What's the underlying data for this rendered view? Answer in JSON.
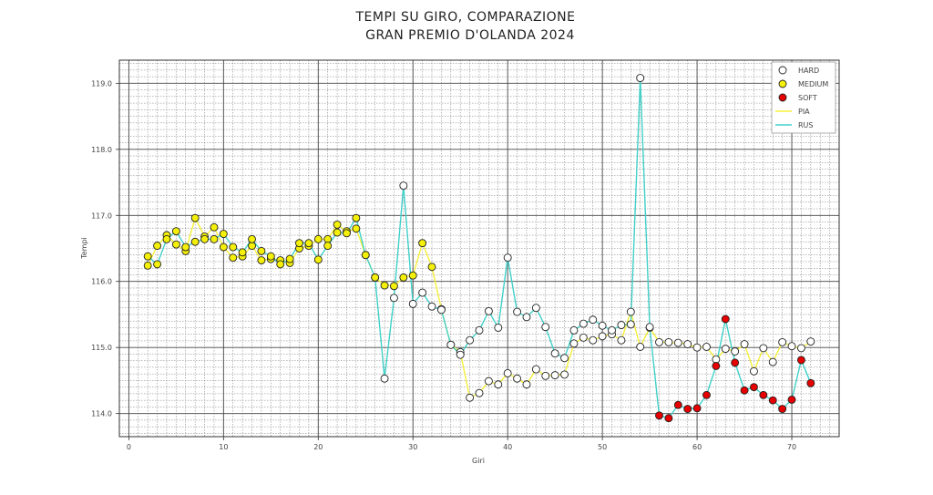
{
  "chart_data": {
    "type": "line",
    "title": [
      "TEMPI SU GIRO, COMPARAZIONE",
      "GRAN PREMIO D'OLANDA 2024"
    ],
    "xlabel": "Giri",
    "ylabel": "Tempi",
    "xlim": [
      -1,
      75
    ],
    "ylim": [
      113.65,
      119.35
    ],
    "xticks": [
      0,
      10,
      20,
      30,
      40,
      50,
      60,
      70
    ],
    "xtick_labels": [
      "0",
      "10",
      "20",
      "30",
      "40",
      "50",
      "60",
      "70"
    ],
    "yticks": [
      114,
      115,
      116,
      117,
      118,
      119
    ],
    "ytick_labels": [
      "114.0",
      "115.0",
      "116.0",
      "117.0",
      "118.0",
      "119.0"
    ],
    "grid": true,
    "legend_position": "top-right",
    "legend": [
      {
        "label": "HARD",
        "kind": "marker",
        "color": "#ffffff"
      },
      {
        "label": "MEDIUM",
        "kind": "marker",
        "color": "#f5f00a"
      },
      {
        "label": "SOFT",
        "kind": "marker",
        "color": "#e60000"
      },
      {
        "label": "PIA",
        "kind": "line",
        "color": "#f5f03c"
      },
      {
        "label": "RUS",
        "kind": "line",
        "color": "#40d0c8"
      }
    ],
    "compound_colors": {
      "H": "#ffffff",
      "M": "#f5f00a",
      "S": "#e60000"
    },
    "series": [
      {
        "name": "PIA",
        "color": "#f5f03c",
        "x": [
          2,
          3,
          4,
          5,
          6,
          7,
          8,
          9,
          10,
          11,
          12,
          13,
          14,
          15,
          16,
          17,
          18,
          19,
          20,
          21,
          22,
          23,
          24,
          25,
          26,
          27,
          28,
          29,
          30,
          31,
          32,
          33,
          34,
          35,
          36,
          37,
          38,
          39,
          40,
          41,
          42,
          43,
          44,
          45,
          46,
          47,
          48,
          49,
          50,
          51,
          52,
          53,
          54,
          55,
          56,
          57,
          58,
          59,
          60,
          61,
          62,
          63,
          64,
          65,
          66,
          67,
          68,
          69,
          70,
          71,
          72
        ],
        "y": [
          116.24,
          116.54,
          116.7,
          116.56,
          116.46,
          116.96,
          116.68,
          116.82,
          116.52,
          116.36,
          116.38,
          116.54,
          116.32,
          116.34,
          116.32,
          116.28,
          116.5,
          116.54,
          116.64,
          116.64,
          116.86,
          116.76,
          116.8,
          116.4,
          116.06,
          115.94,
          115.93,
          116.06,
          116.09,
          116.58,
          116.22,
          115.58,
          115.04,
          114.93,
          114.24,
          114.31,
          114.49,
          114.44,
          114.61,
          114.53,
          114.44,
          114.67,
          114.57,
          114.58,
          114.59,
          115.06,
          115.15,
          115.11,
          115.17,
          115.2,
          115.11,
          115.54,
          115.01,
          115.3,
          115.08,
          115.08,
          115.07,
          115.05,
          115.0,
          115.01,
          114.82,
          114.98,
          114.94,
          115.05,
          114.64,
          114.99,
          114.78,
          115.08,
          115.02,
          114.99,
          115.09
        ],
        "compounds": [
          "M",
          "M",
          "M",
          "M",
          "M",
          "M",
          "M",
          "M",
          "M",
          "M",
          "M",
          "M",
          "M",
          "M",
          "M",
          "M",
          "M",
          "M",
          "M",
          "M",
          "M",
          "M",
          "M",
          "M",
          "M",
          "M",
          "M",
          "M",
          "M",
          "M",
          "M",
          "H",
          "H",
          "H",
          "H",
          "H",
          "H",
          "H",
          "H",
          "H",
          "H",
          "H",
          "H",
          "H",
          "H",
          "H",
          "H",
          "H",
          "H",
          "H",
          "H",
          "H",
          "H",
          "H",
          "H",
          "H",
          "H",
          "H",
          "H",
          "H",
          "H",
          "H",
          "H",
          "H",
          "H",
          "H",
          "H",
          "H",
          "H",
          "H",
          "H"
        ]
      },
      {
        "name": "RUS",
        "color": "#40d0c8",
        "x": [
          2,
          3,
          4,
          5,
          6,
          7,
          8,
          9,
          10,
          11,
          12,
          13,
          14,
          15,
          16,
          17,
          18,
          19,
          20,
          21,
          22,
          23,
          24,
          25,
          26,
          27,
          28,
          29,
          30,
          31,
          32,
          33,
          34,
          35,
          36,
          37,
          38,
          39,
          40,
          41,
          42,
          43,
          44,
          45,
          46,
          47,
          48,
          49,
          50,
          51,
          52,
          53,
          54,
          55,
          56,
          57,
          58,
          59,
          60,
          61,
          62,
          63,
          64,
          65,
          66,
          67,
          68,
          69,
          70,
          71,
          72
        ],
        "y": [
          116.38,
          116.26,
          116.64,
          116.76,
          116.52,
          116.6,
          116.64,
          116.64,
          116.72,
          116.52,
          116.44,
          116.64,
          116.46,
          116.38,
          116.26,
          116.34,
          116.58,
          116.58,
          116.33,
          116.54,
          116.74,
          116.73,
          116.96,
          116.4,
          116.06,
          114.53,
          115.75,
          117.45,
          115.66,
          115.83,
          115.62,
          115.57,
          115.04,
          114.89,
          115.11,
          115.26,
          115.55,
          115.3,
          116.36,
          115.54,
          115.46,
          115.6,
          115.31,
          114.91,
          114.84,
          115.26,
          115.36,
          115.42,
          115.33,
          115.26,
          115.34,
          115.35,
          119.08,
          115.31,
          113.97,
          113.93,
          114.13,
          114.07,
          114.08,
          114.28,
          114.72,
          115.43,
          114.77,
          114.35,
          114.4,
          114.28,
          114.2,
          114.07,
          114.21,
          114.81,
          114.46
        ],
        "compounds": [
          "M",
          "M",
          "M",
          "M",
          "M",
          "M",
          "M",
          "M",
          "M",
          "M",
          "M",
          "M",
          "M",
          "M",
          "M",
          "M",
          "M",
          "M",
          "M",
          "M",
          "M",
          "M",
          "M",
          "M",
          "M",
          "H",
          "H",
          "H",
          "H",
          "H",
          "H",
          "H",
          "H",
          "H",
          "H",
          "H",
          "H",
          "H",
          "H",
          "H",
          "H",
          "H",
          "H",
          "H",
          "H",
          "H",
          "H",
          "H",
          "H",
          "H",
          "H",
          "H",
          "H",
          "H",
          "S",
          "S",
          "S",
          "S",
          "S",
          "S",
          "S",
          "S",
          "S",
          "S",
          "S",
          "S",
          "S",
          "S",
          "S",
          "S",
          "S"
        ]
      }
    ]
  }
}
